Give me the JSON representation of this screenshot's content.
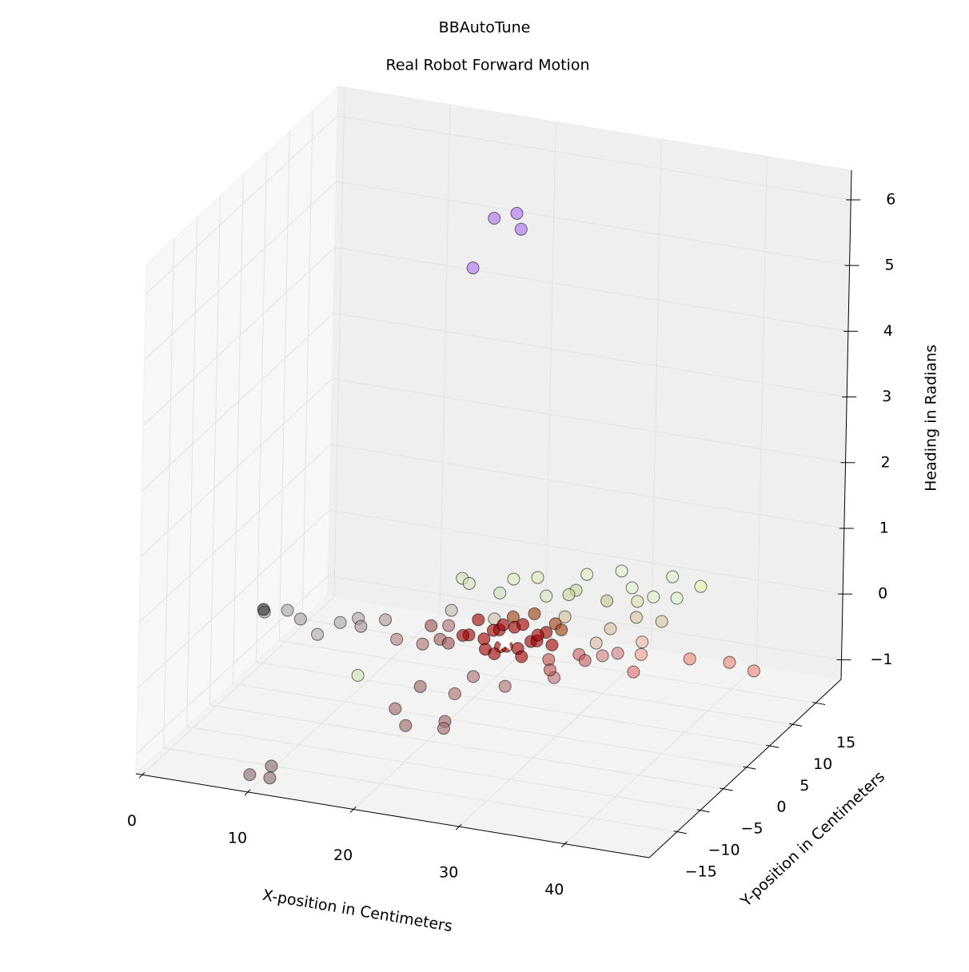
{
  "chart_data": {
    "type": "scatter3d",
    "title": "BBAutoTune",
    "subtitle": "Real Robot Forward Motion",
    "xlabel": "X-position in Centimeters",
    "ylabel": "Y-position in Centimeters",
    "zlabel": "Heading in Radians",
    "xlim": [
      -0.6,
      48
    ],
    "ylim": [
      -21,
      20.5
    ],
    "zlim": [
      -1.3,
      6.45
    ],
    "xticks": [
      0,
      10,
      20,
      30,
      40
    ],
    "yticks": [
      {
        "value": -15,
        "label": "−15"
      },
      {
        "value": -10,
        "label": "−10"
      },
      {
        "value": -5,
        "label": "−5"
      },
      0,
      5,
      10,
      15
    ],
    "zticks": [
      {
        "value": -1,
        "label": "−1"
      },
      0,
      1,
      2,
      3,
      4,
      5,
      6
    ],
    "grid": true,
    "points": [
      {
        "x": 3.0,
        "y": -1.8,
        "z": 0,
        "color": "#a0a0a0"
      },
      {
        "x": 4.7,
        "y": -0.7,
        "z": 0,
        "color": "#a8a8a8"
      },
      {
        "x": 6.5,
        "y": -2.0,
        "z": 0,
        "color": "#a8a0a0"
      },
      {
        "x": 9.2,
        "y": -4.5,
        "z": 0,
        "color": "#b0a8a8"
      },
      {
        "x": 10.0,
        "y": -1.4,
        "z": 0,
        "color": "#b0a8a8"
      },
      {
        "x": 11.1,
        "y": 0,
        "z": 0,
        "color": "#b0a0a0"
      },
      {
        "x": 12.0,
        "y": -1.5,
        "z": 0,
        "color": "#a89898"
      },
      {
        "x": 13.4,
        "y": 0.6,
        "z": 0,
        "color": "#b09898"
      },
      {
        "x": 2.7,
        "y": -1.3,
        "z": 0,
        "color": "#303030"
      },
      {
        "x": 9.2,
        "y": -18.8,
        "z": -1.2,
        "color": "#8a6a6a"
      },
      {
        "x": 11.1,
        "y": -18.8,
        "z": -1.2,
        "color": "#8a6a6a"
      },
      {
        "x": 10.2,
        "y": -16.4,
        "z": -1.2,
        "color": "#8a6a6a"
      },
      {
        "x": 24.2,
        "y": -19.7,
        "z": 0,
        "color": "#a06868"
      },
      {
        "x": 27.0,
        "y": -17.6,
        "z": 0,
        "color": "#a06868"
      },
      {
        "x": 27.5,
        "y": -19.0,
        "z": 0,
        "color": "#a06868"
      },
      {
        "x": 21.9,
        "y": -16.7,
        "z": 0,
        "color": "#a06868"
      },
      {
        "x": 22.0,
        "y": -11.5,
        "z": 0,
        "color": "#a06868"
      },
      {
        "x": 25.4,
        "y": -11.8,
        "z": 0,
        "color": "#b07070"
      },
      {
        "x": 25.4,
        "y": -7.8,
        "z": 0,
        "color": "#b07070"
      },
      {
        "x": 28.8,
        "y": -8.7,
        "z": 0,
        "color": "#b07070"
      },
      {
        "x": 32.0,
        "y": -5.4,
        "z": 0,
        "color": "#c07070"
      },
      {
        "x": 16.0,
        "y": -11.3,
        "z": 0,
        "color": "#d0e0b0"
      },
      {
        "x": 16.0,
        "y": 11.3,
        "z": 0,
        "color": "#d0e0b0"
      },
      {
        "x": 17.0,
        "y": 10.5,
        "z": 0,
        "color": "#d8e0c0"
      },
      {
        "x": 20.2,
        "y": 12.8,
        "z": 0,
        "color": "#d8ecb8"
      },
      {
        "x": 22.0,
        "y": 13.9,
        "z": 0,
        "color": "#d8ecb8"
      },
      {
        "x": 20.3,
        "y": 9.6,
        "z": 0,
        "color": "#d0e0c0"
      },
      {
        "x": 24.3,
        "y": 10.5,
        "z": 0,
        "color": "#d8e8c0"
      },
      {
        "x": 25.7,
        "y": 16.1,
        "z": 0,
        "color": "#e0f0c0"
      },
      {
        "x": 26.2,
        "y": 12.6,
        "z": 0,
        "color": "#c8d8a0"
      },
      {
        "x": 26.0,
        "y": 11.5,
        "z": 0,
        "color": "#c8d8a0"
      },
      {
        "x": 28.2,
        "y": 17.9,
        "z": 0,
        "color": "#e0f0c8"
      },
      {
        "x": 29.6,
        "y": 11.5,
        "z": 0,
        "color": "#c8c890"
      },
      {
        "x": 30.5,
        "y": 14.9,
        "z": 0,
        "color": "#e0f0c8"
      },
      {
        "x": 32.1,
        "y": 12.4,
        "z": 0,
        "color": "#e0e0b0"
      },
      {
        "x": 33.0,
        "y": 13.8,
        "z": 0,
        "color": "#e0f0c8"
      },
      {
        "x": 32.8,
        "y": 18.4,
        "z": 0,
        "color": "#e0f0c8"
      },
      {
        "x": 35.0,
        "y": 14.3,
        "z": 0,
        "color": "#e0f0c8"
      },
      {
        "x": 35.9,
        "y": 17.4,
        "z": 0,
        "color": "#e8f4b0"
      },
      {
        "x": 22.1,
        "y": 4.3,
        "z": 0,
        "color": "#d0c0a8"
      },
      {
        "x": 17.9,
        "y": 4.6,
        "z": 0,
        "color": "#c0b8b0"
      },
      {
        "x": 27.6,
        "y": 7.0,
        "z": 0,
        "color": "#d8c0a0"
      },
      {
        "x": 32.3,
        "y": 6.1,
        "z": 0,
        "color": "#d8c0a0"
      },
      {
        "x": 33.4,
        "y": 9.2,
        "z": 0,
        "color": "#d8c8a0"
      },
      {
        "x": 35.8,
        "y": 9.2,
        "z": 0,
        "color": "#d8c8a0"
      },
      {
        "x": 32.4,
        "y": 2.8,
        "z": 0,
        "color": "#dbb8a0"
      },
      {
        "x": 16.0,
        "y": -2.9,
        "z": 0,
        "color": "#b08080"
      },
      {
        "x": 17.6,
        "y": 0.9,
        "z": 0,
        "color": "#a05050"
      },
      {
        "x": 18.5,
        "y": -3.0,
        "z": 0,
        "color": "#b07070"
      },
      {
        "x": 19.5,
        "y": -1.5,
        "z": 0,
        "color": "#a06060"
      },
      {
        "x": 19.0,
        "y": 1.5,
        "z": 0,
        "color": "#b07070"
      },
      {
        "x": 20.5,
        "y": -2.0,
        "z": 0,
        "color": "#a05050"
      },
      {
        "x": 24.0,
        "y": 4.0,
        "z": 0.1,
        "color": "#a04010"
      },
      {
        "x": 26.0,
        "y": 4.0,
        "z": 0.2,
        "color": "#a04010"
      },
      {
        "x": 28.0,
        "y": 4.0,
        "z": 0.1,
        "color": "#a04010"
      },
      {
        "x": 29.0,
        "y": 3.0,
        "z": 0.1,
        "color": "#a04010"
      },
      {
        "x": 30.0,
        "y": -2.0,
        "z": 0,
        "color": "#c05050"
      },
      {
        "x": 31.0,
        "y": -4.0,
        "z": 0,
        "color": "#c05050"
      },
      {
        "x": 32.0,
        "y": 0,
        "z": 0,
        "color": "#c86060"
      },
      {
        "x": 33.0,
        "y": -1.0,
        "z": 0,
        "color": "#c86060"
      },
      {
        "x": 34.0,
        "y": 0.5,
        "z": 0,
        "color": "#d08080"
      },
      {
        "x": 35.0,
        "y": 1.5,
        "z": 0,
        "color": "#d08080"
      },
      {
        "x": 36.0,
        "y": 4.5,
        "z": 0,
        "color": "#f0b8a8"
      },
      {
        "x": 37.0,
        "y": 2.0,
        "z": 0,
        "color": "#f0a090"
      },
      {
        "x": 37.9,
        "y": -1.7,
        "z": 0,
        "color": "#e87070"
      },
      {
        "x": 41.3,
        "y": 2.7,
        "z": 0,
        "color": "#f08878"
      },
      {
        "x": 44.8,
        "y": 3.3,
        "z": 0,
        "color": "#f08878"
      },
      {
        "x": 47.5,
        "y": 2.4,
        "z": 0,
        "color": "#f08878"
      },
      {
        "x": 23.0,
        "y": 0,
        "z": 0,
        "color": "#a00000"
      },
      {
        "x": 24.0,
        "y": 1.0,
        "z": 0.1,
        "color": "#a00000"
      },
      {
        "x": 25.0,
        "y": -1.0,
        "z": 0,
        "color": "#a00000"
      },
      {
        "x": 26.0,
        "y": 0.5,
        "z": -0.1,
        "color": "#a00000"
      },
      {
        "x": 27.0,
        "y": 1.0,
        "z": 0,
        "color": "#a00000"
      },
      {
        "x": 22.0,
        "y": -1.0,
        "z": 0.1,
        "color": "#a00000"
      },
      {
        "x": 24.0,
        "y": -2.0,
        "z": 0,
        "color": "#a00000"
      },
      {
        "x": 26.0,
        "y": -2.0,
        "z": 0.1,
        "color": "#a00000"
      },
      {
        "x": 28.0,
        "y": 0,
        "z": 0.1,
        "color": "#a00000"
      },
      {
        "x": 25.0,
        "y": 2.0,
        "z": 0.1,
        "color": "#a00000"
      },
      {
        "x": 23.0,
        "y": 2.0,
        "z": 0,
        "color": "#a00000"
      },
      {
        "x": 27.0,
        "y": -1.0,
        "z": -0.1,
        "color": "#a00000"
      },
      {
        "x": 29.0,
        "y": 1.0,
        "z": 0,
        "color": "#a00000"
      },
      {
        "x": 21.0,
        "y": 0,
        "z": 0,
        "color": "#a00000"
      },
      {
        "x": 24.0,
        "y": 0,
        "z": -0.2,
        "color": "#a00000"
      },
      {
        "x": 26.0,
        "y": 1.5,
        "z": 0.2,
        "color": "#a00000"
      },
      {
        "x": 28.0,
        "y": 2.0,
        "z": 0.1,
        "color": "#a00000"
      },
      {
        "x": 22.0,
        "y": 1.0,
        "z": 0.2,
        "color": "#a00000"
      },
      {
        "x": 25.0,
        "y": -0.5,
        "z": 0.3,
        "color": "#a00000"
      },
      {
        "x": 27.0,
        "y": 2.5,
        "z": 0,
        "color": "#a00000"
      },
      {
        "x": 22.0,
        "y": 2.7,
        "z": 6.2,
        "color": "#b070f0"
      },
      {
        "x": 23.4,
        "y": 4.4,
        "z": 6.2,
        "color": "#b070f0"
      },
      {
        "x": 24.0,
        "y": 4.0,
        "z": 6.0,
        "color": "#b070f0"
      },
      {
        "x": 21.8,
        "y": -1.3,
        "z": 5.7,
        "color": "#b070f0"
      }
    ],
    "target": {
      "x": 25,
      "y": 0,
      "z": 0,
      "color": "#ffffff"
    }
  }
}
